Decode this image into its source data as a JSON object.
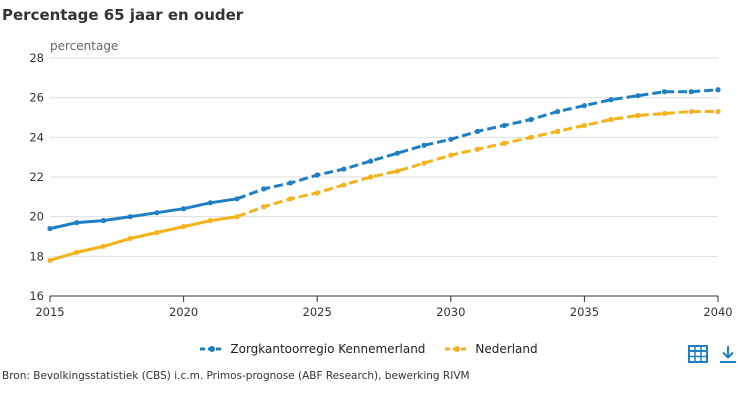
{
  "title": "Percentage 65 jaar en ouder",
  "source": "Bron: Bevolkingsstatistiek (CBS) i.c.m. Primos-prognose (ABF Research), bewerking RIVM",
  "icons": [
    "table-icon",
    "download-icon"
  ],
  "colors": {
    "kennemerland": "#1f7fc4",
    "nederland": "#f5b21b"
  },
  "chart_data": {
    "type": "line",
    "title": "Percentage 65 jaar en ouder",
    "xlabel": "",
    "ylabel": "percentage",
    "xlim": [
      2015,
      2040
    ],
    "ylim": [
      16,
      28
    ],
    "xticks": [
      2015,
      2020,
      2025,
      2030,
      2035,
      2040
    ],
    "yticks": [
      16,
      18,
      20,
      22,
      24,
      26,
      28
    ],
    "grid": "horizontal",
    "legend": "bottom",
    "x": [
      2015,
      2016,
      2017,
      2018,
      2019,
      2020,
      2021,
      2022,
      2023,
      2024,
      2025,
      2026,
      2027,
      2028,
      2029,
      2030,
      2031,
      2032,
      2033,
      2034,
      2035,
      2036,
      2037,
      2038,
      2039,
      2040
    ],
    "forecast_from": 2022,
    "series": [
      {
        "name": "Zorgkantoorregio Kennemerland",
        "color": "#1f7fc4",
        "values": [
          19.4,
          19.7,
          19.8,
          20.0,
          20.2,
          20.4,
          20.7,
          20.9,
          21.4,
          21.7,
          22.1,
          22.4,
          22.8,
          23.2,
          23.6,
          23.9,
          24.3,
          24.6,
          24.9,
          25.3,
          25.6,
          25.9,
          26.1,
          26.3,
          26.3,
          26.4
        ]
      },
      {
        "name": "Nederland",
        "color": "#f5b21b",
        "values": [
          17.8,
          18.2,
          18.5,
          18.9,
          19.2,
          19.5,
          19.8,
          20.0,
          20.5,
          20.9,
          21.2,
          21.6,
          22.0,
          22.3,
          22.7,
          23.1,
          23.4,
          23.7,
          24.0,
          24.3,
          24.6,
          24.9,
          25.1,
          25.2,
          25.3,
          25.3
        ]
      }
    ]
  }
}
